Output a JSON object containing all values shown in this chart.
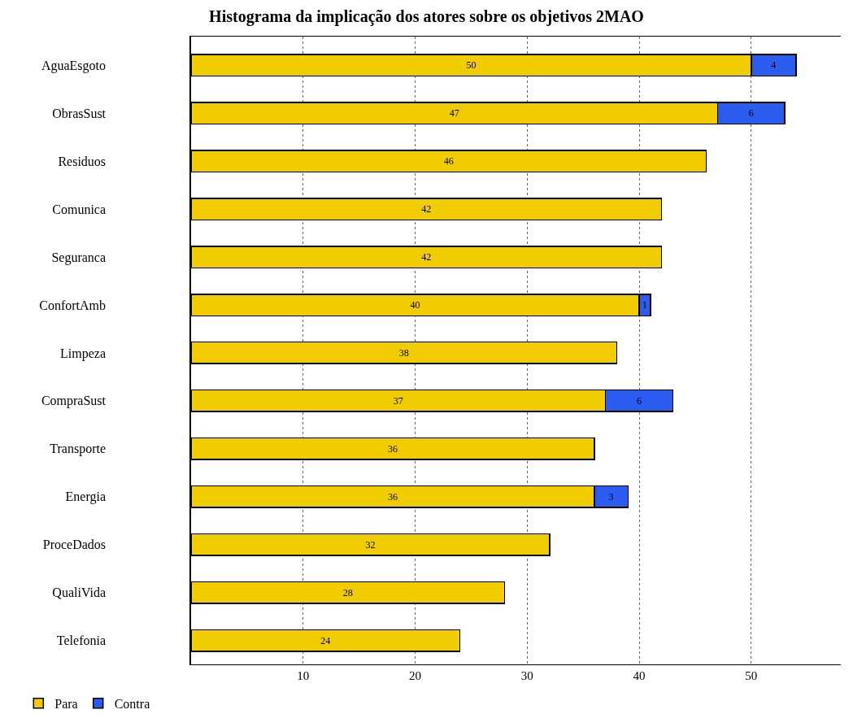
{
  "chart_data": {
    "type": "bar",
    "orientation": "horizontal",
    "stacked": true,
    "title": "Histograma da implicação dos atores sobre os objetivos 2MAO",
    "categories": [
      "AguaEsgoto",
      "ObrasSust",
      "Residuos",
      "Comunica",
      "Seguranca",
      "ConfortAmb",
      "Limpeza",
      "CompraSust",
      "Transporte",
      "Energia",
      "ProceDados",
      "QualiVida",
      "Telefonia"
    ],
    "series": [
      {
        "name": "Para",
        "color": "#f0cc00",
        "values": [
          50,
          47,
          46,
          42,
          42,
          40,
          38,
          37,
          36,
          36,
          32,
          28,
          24
        ]
      },
      {
        "name": "Contra",
        "color": "#2a5cf0",
        "values": [
          4,
          6,
          null,
          null,
          null,
          1,
          null,
          6,
          null,
          3,
          null,
          null,
          null
        ]
      }
    ],
    "xlim": [
      0,
      58
    ],
    "xticks": [
      10,
      20,
      30,
      40,
      50
    ],
    "grid": "x",
    "legend": "bottom left",
    "data_labels": true
  }
}
